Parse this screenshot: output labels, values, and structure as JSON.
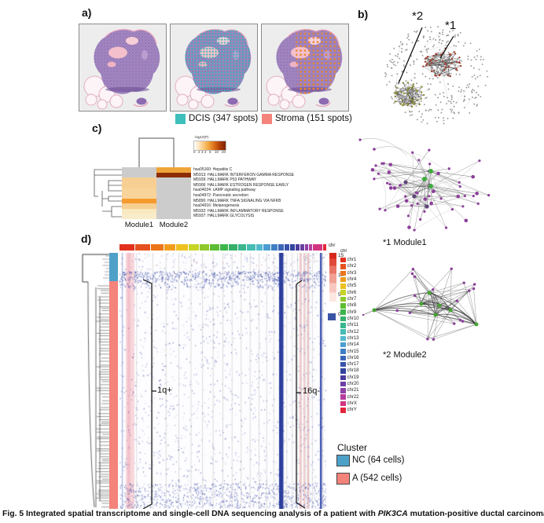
{
  "panels": {
    "a": {
      "label": "a)"
    },
    "b": {
      "label": "b)",
      "marker2": "*2",
      "marker1": "*1"
    },
    "c": {
      "label": "c)"
    },
    "d": {
      "label": "d)"
    }
  },
  "spot_legend": {
    "dcis": {
      "label": "DCIS (347 spots)",
      "color": "#3fbfbc"
    },
    "stroma": {
      "label": "Stroma (151 spots)",
      "color": "#f4837b"
    }
  },
  "pathway_heatmap": {
    "colorbar_title": "-log10(P)",
    "colorbar_ticks": [
      "0",
      "2",
      "3",
      "4",
      "6",
      "10",
      "20"
    ],
    "columns": [
      "Module1",
      "Module2"
    ],
    "rows": [
      {
        "label": "hsa05160: Hepatitis C",
        "m1": "#cccccc",
        "m2": "#f0a43c"
      },
      {
        "label": "M5913: HALLMARK INTERFERON GAMMA RESPONSE",
        "m1": "#cccccc",
        "m2": "#8c2d04"
      },
      {
        "label": "M5939: HALLMARK P53 PATHWAY",
        "m1": "#f7cf92",
        "m2": "#cccccc"
      },
      {
        "label": "M5906: HALLMARK ESTROGEN RESPONSE EARLY",
        "m1": "#f7cf92",
        "m2": "#cccccc"
      },
      {
        "label": "hsa04024: cAMP signaling pathway",
        "m1": "#f8d49a",
        "m2": "#cccccc"
      },
      {
        "label": "hsa04972: Pancreatic secretion",
        "m1": "#f8d49a",
        "m2": "#cccccc"
      },
      {
        "label": "M5890: HALLMARK TNFA SIGNALING VIA NFKB",
        "m1": "#f59b2e",
        "m2": "#cccccc"
      },
      {
        "label": "hsa04916: Melanogenesis",
        "m1": "#f7cf92",
        "m2": "#cccccc"
      },
      {
        "label": "M5932: HALLMARK INFLAMMATORY RESPONSE",
        "m1": "#f9e9c0",
        "m2": "#cccccc"
      },
      {
        "label": "M5937: HALLMARK GLYCOLYSIS",
        "m1": "#f9ecca",
        "m2": "#cccccc"
      }
    ]
  },
  "modules": {
    "module1_label": "*1 Module1",
    "module2_label": "*2 Module2"
  },
  "cnv_heatmap": {
    "chr_bar_label": "chr",
    "colorbar_ticks": [
      "15",
      "10",
      "5",
      "0"
    ],
    "annotations": {
      "gain": "1q+",
      "loss": "16q-"
    },
    "chr_legend_title": "chr",
    "chromosomes": [
      {
        "label": "chr1",
        "color": "#e2321e",
        "frac": 8.07
      },
      {
        "label": "chr2",
        "color": "#e5521f",
        "frac": 7.87
      },
      {
        "label": "chr3",
        "color": "#ec7419",
        "frac": 6.42
      },
      {
        "label": "chr4",
        "color": "#f29c1c",
        "frac": 6.16
      },
      {
        "label": "chr5",
        "color": "#eec11e",
        "frac": 5.9
      },
      {
        "label": "chr6",
        "color": "#c6d426",
        "frac": 5.54
      },
      {
        "label": "chr7",
        "color": "#8fc92c",
        "frac": 5.15
      },
      {
        "label": "chr8",
        "color": "#5dbd33",
        "frac": 4.7
      },
      {
        "label": "chr9",
        "color": "#3cb54a",
        "frac": 4.47
      },
      {
        "label": "chr10",
        "color": "#35b06b",
        "frac": 4.34
      },
      {
        "label": "chr11",
        "color": "#39b68d",
        "frac": 4.37
      },
      {
        "label": "chr12",
        "color": "#45bcb4",
        "frac": 4.31
      },
      {
        "label": "chr13",
        "color": "#52b9cd",
        "frac": 3.69
      },
      {
        "label": "chr14",
        "color": "#4a9ed2",
        "frac": 3.47
      },
      {
        "label": "chr15",
        "color": "#3f7fc5",
        "frac": 3.3
      },
      {
        "label": "chr16",
        "color": "#3a66b8",
        "frac": 2.92
      },
      {
        "label": "chr17",
        "color": "#3653ab",
        "frac": 2.69
      },
      {
        "label": "chr18",
        "color": "#32439f",
        "frac": 2.59
      },
      {
        "label": "chr19",
        "color": "#4a3d9e",
        "frac": 1.91
      },
      {
        "label": "chr20",
        "color": "#6b3fa4",
        "frac": 2.04
      },
      {
        "label": "chr21",
        "color": "#8f41a8",
        "frac": 1.56
      },
      {
        "label": "chr22",
        "color": "#b53d9b",
        "frac": 1.65
      },
      {
        "label": "chrX",
        "color": "#d23580",
        "frac": 5.02
      },
      {
        "label": "chrY",
        "color": "#e3263c",
        "frac": 1.85
      }
    ]
  },
  "cluster_legend": {
    "title": "Cluster",
    "items": [
      {
        "label": "NC (64 cells)",
        "color": "#4da1c8"
      },
      {
        "label": "A (542 cells)",
        "color": "#f4837b"
      }
    ]
  },
  "caption": {
    "pre": "Fig. 5 Integrated spatial transcriptome and single-cell DNA sequencing analysis of a patient with ",
    "gene": "PIK3CA",
    "post": " mutation-positive ductal carcinoma in situ"
  }
}
